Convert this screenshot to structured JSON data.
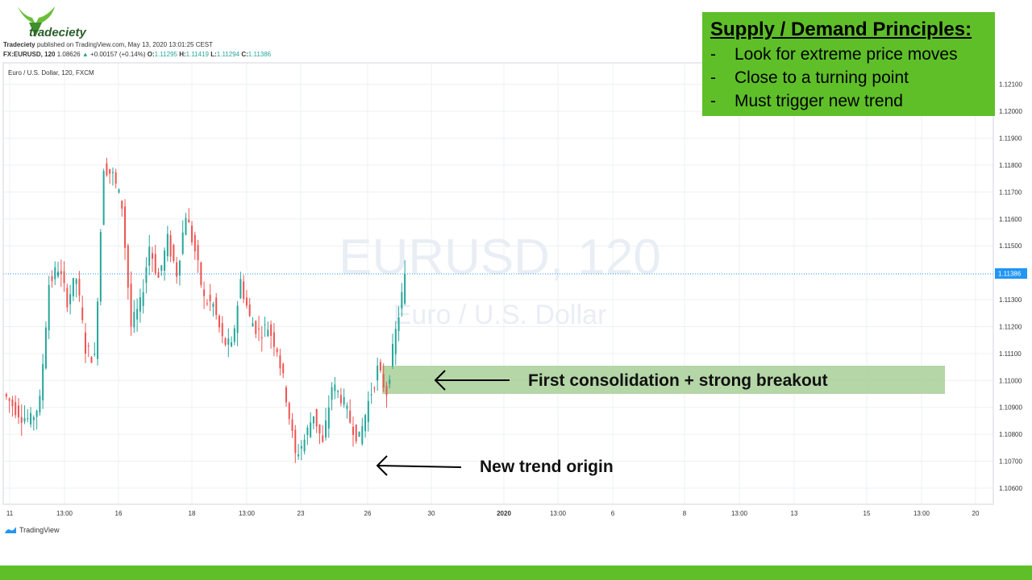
{
  "header": {
    "logo_text": "tradeciety",
    "publisher": "Tradeciety",
    "published_text": "published on TradingView.com, May 13, 2020 13:01:25 CEST",
    "symbol": "FX:EURUSD, 120",
    "last": "1.08626",
    "change": "+0.00157 (+0.14%)",
    "open": "1.11295",
    "high": "1.11419",
    "low": "1.11294",
    "close": "1.11386"
  },
  "chart_title": "Euro / U.S. Dollar, 120, FXCM",
  "watermark": {
    "line1": "EURUSD, 120",
    "line2": "Euro / U.S. Dollar"
  },
  "principles": {
    "title": "Supply / Demand Principles:",
    "items": [
      "Look for extreme price moves",
      "Close to a turning point",
      "Must trigger new trend"
    ]
  },
  "annotations": {
    "consolidation": "First consolidation + strong breakout",
    "origin": "New trend origin"
  },
  "tv_brand": "TradingView",
  "colors": {
    "up": "#26a69a",
    "down": "#ef5350",
    "zone": "#a8cf98",
    "accent": "#5fbf29",
    "price_line": "#2196f3"
  },
  "chart_data": {
    "type": "candlestick",
    "title": "Euro / U.S. Dollar, 120, FXCM",
    "ylim": [
      1.1054,
      1.1218
    ],
    "y_ticks": [
      "1.12100",
      "1.12000",
      "1.11900",
      "1.11800",
      "1.11700",
      "1.11600",
      "1.11500",
      "1.11300",
      "1.11200",
      "1.11100",
      "1.11000",
      "1.10900",
      "1.10800",
      "1.10700",
      "1.10600"
    ],
    "current_price": "1.11386",
    "x_ticks": [
      "11",
      "13:00",
      "16",
      "18",
      "13:00",
      "23",
      "26",
      "30",
      "2020",
      "13:00",
      "6",
      "8",
      "13:00",
      "13",
      "15",
      "13:00",
      "20"
    ],
    "ohlc_anchors": [
      [
        1.1095,
        1.1091
      ],
      [
        1.1091,
        1.1087
      ],
      [
        1.1087,
        1.1085
      ],
      [
        1.1085,
        1.1092
      ],
      [
        1.1092,
        1.1136
      ],
      [
        1.1136,
        1.1142
      ],
      [
        1.1142,
        1.113
      ],
      [
        1.113,
        1.1138
      ],
      [
        1.1138,
        1.1112
      ],
      [
        1.1112,
        1.1108
      ],
      [
        1.1108,
        1.118
      ],
      [
        1.118,
        1.1176
      ],
      [
        1.1176,
        1.1165
      ],
      [
        1.1165,
        1.112
      ],
      [
        1.112,
        1.1128
      ],
      [
        1.1128,
        1.115
      ],
      [
        1.115,
        1.1138
      ],
      [
        1.1138,
        1.1152
      ],
      [
        1.1152,
        1.114
      ],
      [
        1.114,
        1.1162
      ],
      [
        1.1162,
        1.1148
      ],
      [
        1.1148,
        1.113
      ],
      [
        1.113,
        1.1128
      ],
      [
        1.1128,
        1.1115
      ],
      [
        1.1115,
        1.1112
      ],
      [
        1.1112,
        1.1137
      ],
      [
        1.1137,
        1.1123
      ],
      [
        1.1123,
        1.1118
      ],
      [
        1.1118,
        1.112
      ],
      [
        1.112,
        1.1112
      ],
      [
        1.1112,
        1.1094
      ],
      [
        1.1094,
        1.1072
      ],
      [
        1.1072,
        1.1078
      ],
      [
        1.1078,
        1.1088
      ],
      [
        1.1088,
        1.1076
      ],
      [
        1.1076,
        1.1098
      ],
      [
        1.1098,
        1.1094
      ],
      [
        1.1094,
        1.1085
      ],
      [
        1.1085,
        1.1078
      ],
      [
        1.1078,
        1.1092
      ],
      [
        1.1092,
        1.1104
      ],
      [
        1.1104,
        1.1096
      ],
      [
        1.1096,
        1.1118
      ],
      [
        1.1118,
        1.1138
      ]
    ]
  }
}
